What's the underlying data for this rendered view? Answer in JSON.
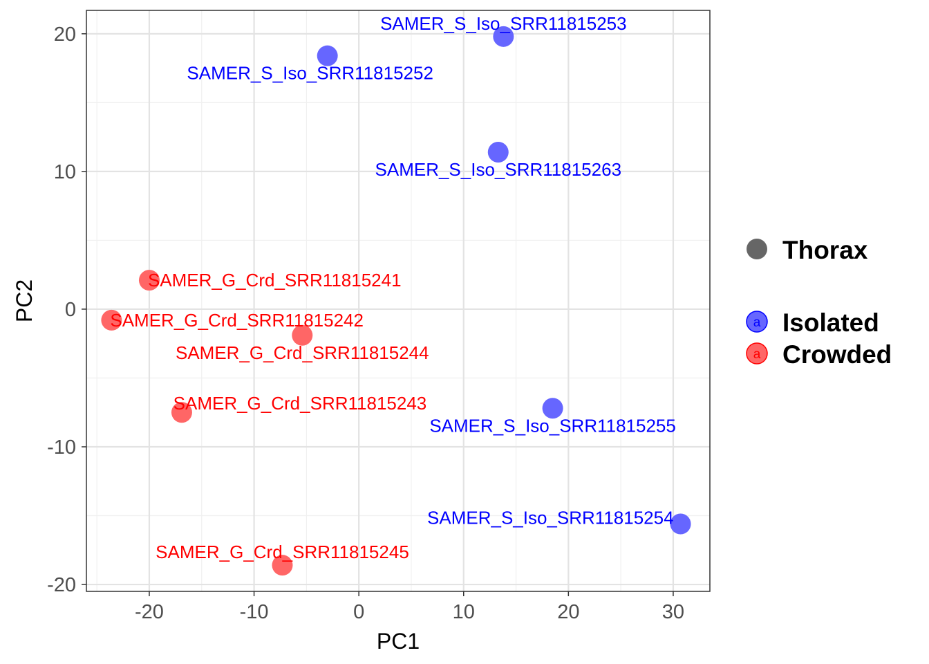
{
  "chart_data": {
    "type": "scatter",
    "title": "",
    "xlabel": "PC1",
    "ylabel": "PC2",
    "xlim": [
      -26,
      33.5
    ],
    "ylim": [
      -20.5,
      21.7
    ],
    "x_ticks": [
      -20,
      -10,
      0,
      10,
      20,
      30
    ],
    "x_tick_labels": [
      "-20",
      "-10",
      "0",
      "10",
      "20",
      "30"
    ],
    "y_ticks": [
      -20,
      -10,
      0,
      10,
      20
    ],
    "y_tick_labels": [
      "-20",
      "-10",
      "0",
      "10",
      "20"
    ],
    "grid": true,
    "legend_position": "right",
    "shape_legend": {
      "label": "Thorax",
      "color": "#666666"
    },
    "series": [
      {
        "name": "Isolated",
        "color": "#0000FF",
        "fill": "#6666FF",
        "points": [
          {
            "label": "SAMER_S_Iso_SRR11815253",
            "x": 13.8,
            "y": 19.8,
            "label_pos": "above"
          },
          {
            "label": "SAMER_S_Iso_SRR11815252",
            "x": -3.0,
            "y": 18.4,
            "label_pos": "below-left"
          },
          {
            "label": "SAMER_S_Iso_SRR11815263",
            "x": 13.3,
            "y": 11.4,
            "label_pos": "below"
          },
          {
            "label": "SAMER_S_Iso_SRR11815255",
            "x": 18.5,
            "y": -7.2,
            "label_pos": "below"
          },
          {
            "label": "SAMER_S_Iso_SRR11815254",
            "x": 30.7,
            "y": -15.6,
            "label_pos": "left"
          }
        ]
      },
      {
        "name": "Crowded",
        "color": "#FF0000",
        "fill": "#FF6666",
        "points": [
          {
            "label": "SAMER_G_Crd_SRR11815241",
            "x": -20.0,
            "y": 2.1,
            "label_pos": "right"
          },
          {
            "label": "SAMER_G_Crd_SRR11815242",
            "x": -23.6,
            "y": -0.8,
            "label_pos": "right"
          },
          {
            "label": "SAMER_G_Crd_SRR11815244",
            "x": -5.4,
            "y": -1.9,
            "label_pos": "below"
          },
          {
            "label": "SAMER_G_Crd_SRR11815243",
            "x": -16.9,
            "y": -7.5,
            "label_pos": "above-right"
          },
          {
            "label": "SAMER_G_Crd_SRR11815245",
            "x": -7.3,
            "y": -18.6,
            "label_pos": "above"
          }
        ]
      }
    ]
  }
}
